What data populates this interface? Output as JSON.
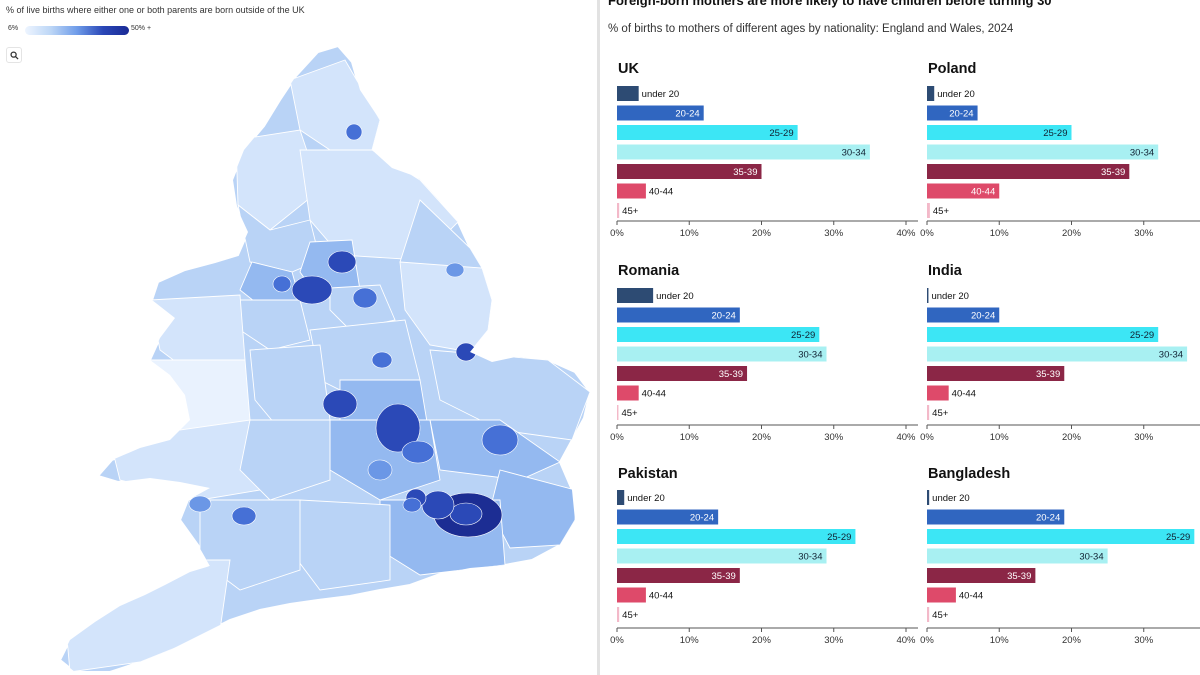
{
  "map": {
    "title": "% of live births where either one or both parents are born outside of the UK",
    "legend_min": "6%",
    "legend_max": "50% +",
    "colors": {
      "c1": "#e9f2fe",
      "c2": "#d3e4fb",
      "c3": "#b9d3f6",
      "c4": "#94b9f0",
      "c5": "#6b97e6",
      "c6": "#4670d6",
      "c7": "#2b49b7",
      "c8": "#1c2d93"
    }
  },
  "zoom_icon": "search-icon",
  "header": {
    "title": "Foreign-born mothers are more likely to have children before turning 30",
    "subtitle": "% of births to mothers of different ages by nationality: England and Wales, 2024"
  },
  "age_colors": [
    "#2d4b73",
    "#3066c0",
    "#3ce6f5",
    "#a8f0f2",
    "#8b2646",
    "#de4a6a",
    "#f3b9c9"
  ],
  "chart_data": {
    "type": "bar",
    "orientation": "horizontal",
    "categories": [
      "under 20",
      "20-24",
      "25-29",
      "30-34",
      "35-39",
      "40-44",
      "45+"
    ],
    "xlim": [
      0,
      40
    ],
    "x_ticks": [
      "0%",
      "10%",
      "20%",
      "30%",
      "40%"
    ],
    "series": [
      {
        "name": "UK",
        "values": [
          3,
          12,
          25,
          35,
          20,
          4,
          0.3
        ]
      },
      {
        "name": "Poland",
        "values": [
          1,
          7,
          20,
          32,
          28,
          10,
          0.4
        ]
      },
      {
        "name": "Romania",
        "values": [
          5,
          17,
          28,
          29,
          18,
          3,
          0.2
        ]
      },
      {
        "name": "India",
        "values": [
          0.2,
          10,
          32,
          36,
          19,
          3,
          0.3
        ]
      },
      {
        "name": "Pakistan",
        "values": [
          1,
          14,
          33,
          29,
          17,
          4,
          0.3
        ]
      },
      {
        "name": "Bangladesh",
        "values": [
          0.3,
          19,
          37,
          25,
          15,
          4,
          0.3
        ]
      }
    ]
  }
}
